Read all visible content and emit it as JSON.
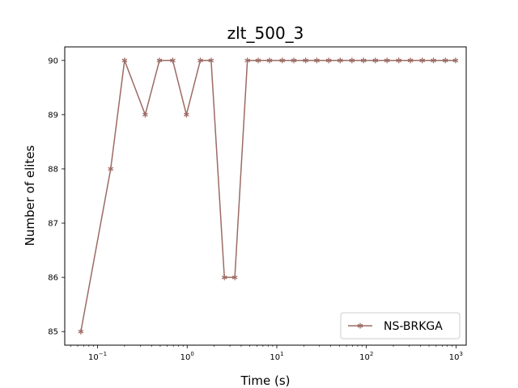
{
  "chart_data": {
    "type": "line",
    "title": "zlt_500_3",
    "xlabel": "Time (s)",
    "ylabel": "Number of elites",
    "x_scale": "log",
    "xlim": [
      0.043,
      1300
    ],
    "ylim": [
      84.75,
      90.25
    ],
    "x_ticks": [
      {
        "value": 0.1,
        "label": "10",
        "exp": "−1"
      },
      {
        "value": 1,
        "label": "10",
        "exp": "0"
      },
      {
        "value": 10,
        "label": "10",
        "exp": "1"
      },
      {
        "value": 100,
        "label": "10",
        "exp": "2"
      },
      {
        "value": 1000,
        "label": "10",
        "exp": "3"
      }
    ],
    "y_ticks": [
      85,
      86,
      87,
      88,
      89,
      90
    ],
    "grid": false,
    "legend_position": "lower-right",
    "series": [
      {
        "name": "NS-BRKGA",
        "color": "#9c6b64",
        "marker": "asterisk",
        "x": [
          0.065,
          0.14,
          0.2,
          0.34,
          0.49,
          0.69,
          0.98,
          1.4,
          1.85,
          2.6,
          3.4,
          4.7,
          6.2,
          8.3,
          11.5,
          15.5,
          21,
          28,
          38,
          51,
          69,
          93,
          126,
          170,
          230,
          310,
          420,
          560,
          760,
          990
        ],
        "y": [
          85,
          88,
          90,
          89,
          90,
          90,
          89,
          90,
          90,
          86,
          86,
          90,
          90,
          90,
          90,
          90,
          90,
          90,
          90,
          90,
          90,
          90,
          90,
          90,
          90,
          90,
          90,
          90,
          90,
          90
        ]
      }
    ]
  }
}
